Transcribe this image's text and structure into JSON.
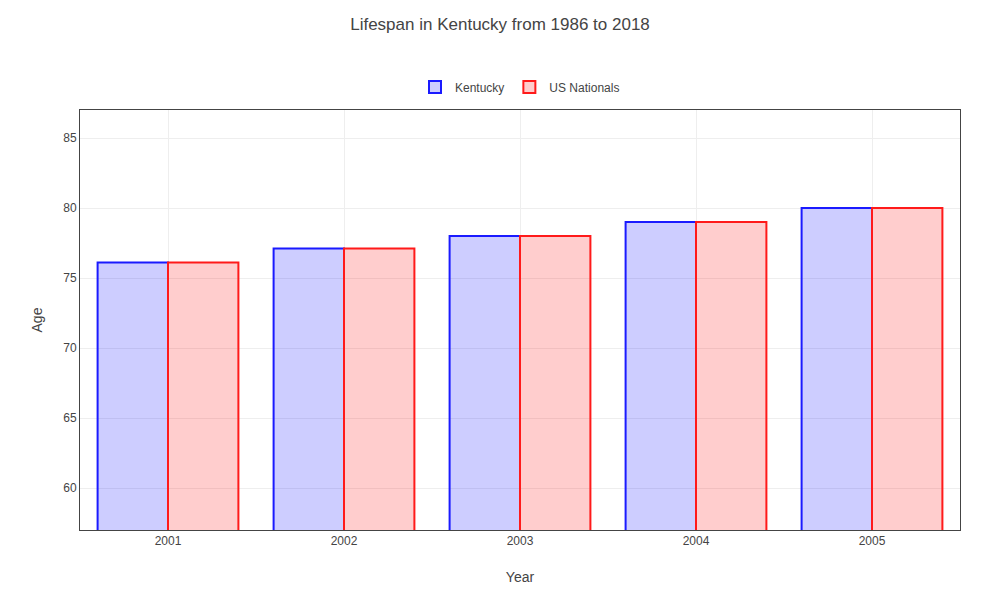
{
  "chart_data": {
    "type": "bar",
    "title": "Lifespan in Kentucky from 1986 to 2018",
    "xlabel": "Year",
    "ylabel": "Age",
    "categories": [
      "2001",
      "2002",
      "2003",
      "2004",
      "2005"
    ],
    "series": [
      {
        "name": "Kentucky",
        "color": "#1a1aff",
        "values": [
          76.1,
          77.1,
          78.0,
          79.0,
          80.0
        ]
      },
      {
        "name": "US Nationals",
        "color": "#ff1a1a",
        "values": [
          76.1,
          77.1,
          78.0,
          79.0,
          80.0
        ]
      }
    ],
    "ylim": [
      57,
      87
    ],
    "yticks": [
      60,
      65,
      70,
      75,
      80,
      85
    ],
    "grid": true,
    "legend": "top"
  }
}
